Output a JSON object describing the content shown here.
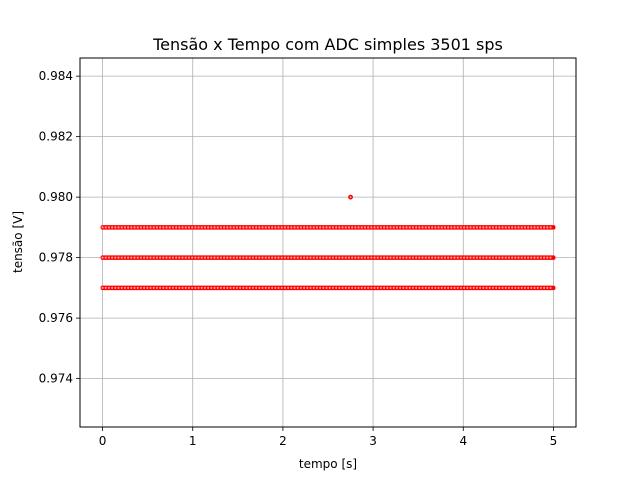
{
  "chart_data": {
    "type": "scatter",
    "title": "Tensão x Tempo com ADC simples 3501 sps",
    "xlabel": "tempo [s]",
    "ylabel": "tensão [V]",
    "xlim": [
      -0.25,
      5.25
    ],
    "ylim": [
      0.9724,
      0.9846
    ],
    "xticks": [
      0,
      1,
      2,
      3,
      4,
      5
    ],
    "xtick_labels": [
      "0",
      "1",
      "2",
      "3",
      "4",
      "5"
    ],
    "yticks": [
      0.974,
      0.976,
      0.978,
      0.98,
      0.982,
      0.984
    ],
    "ytick_labels": [
      "0.974",
      "0.976",
      "0.978",
      "0.980",
      "0.982",
      "0.984"
    ],
    "grid": true,
    "marker_color": "#ff0000",
    "series": [
      {
        "levels": [
          0.979,
          0.978,
          0.977
        ],
        "x_range": [
          0,
          5
        ],
        "sample_rate_sps": 3501,
        "outliers": [
          {
            "x": 2.75,
            "y": 0.98
          }
        ]
      }
    ]
  }
}
